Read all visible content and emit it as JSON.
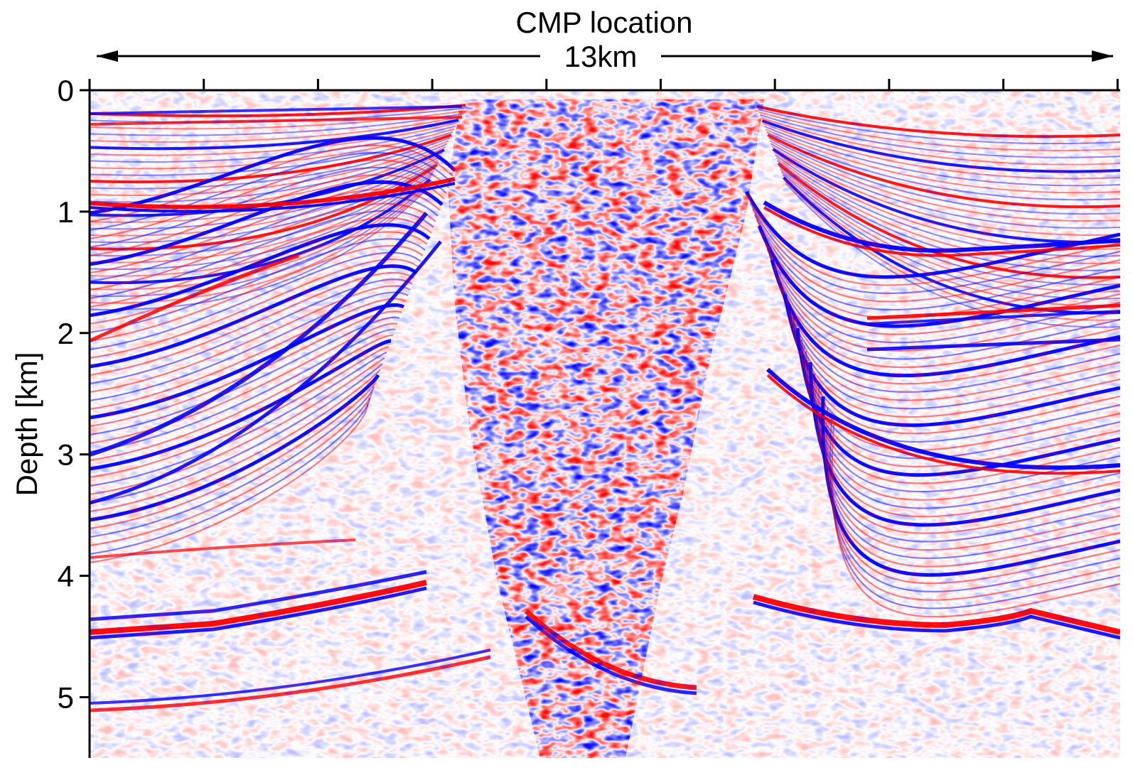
{
  "chart_data": {
    "type": "heatmap",
    "title": "CMP location",
    "width_label": "13km",
    "xlabel": "CMP location",
    "ylabel": "Depth [km]",
    "x_range_km": [
      0,
      13
    ],
    "ylim": [
      0,
      5.5
    ],
    "y_ticks": [
      {
        "value": 0,
        "label": "0"
      },
      {
        "value": 1,
        "label": "1"
      },
      {
        "value": 2,
        "label": "2"
      },
      {
        "value": 3,
        "label": "3"
      },
      {
        "value": 4,
        "label": "4"
      },
      {
        "value": 5,
        "label": "5"
      }
    ],
    "x_tick_count": 10,
    "colormap": {
      "negative": "#0000ff",
      "zero": "#ffffff",
      "positive": "#ff0000"
    },
    "grid": false,
    "legend": "none"
  }
}
